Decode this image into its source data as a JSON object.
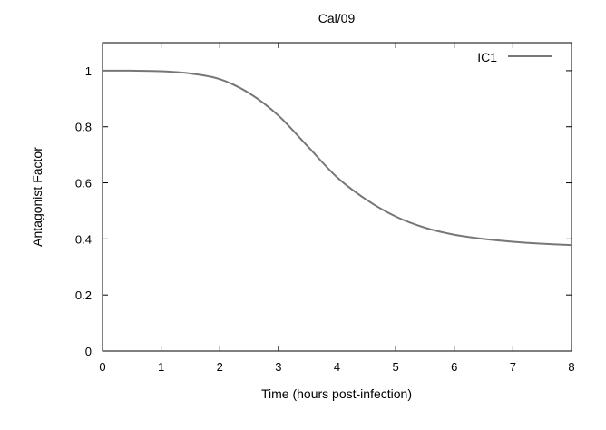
{
  "chart_data": {
    "type": "line",
    "title": "Cal/09",
    "xlabel": "Time (hours post-infection)",
    "ylabel": "Antagonist Factor",
    "xlim": [
      0,
      8
    ],
    "ylim": [
      0,
      1.1
    ],
    "xticks": [
      "0",
      "1",
      "2",
      "3",
      "4",
      "5",
      "6",
      "7",
      "8"
    ],
    "yticks": [
      "0",
      "0.2",
      "0.4",
      "0.6",
      "0.8",
      "1"
    ],
    "grid": false,
    "legend": "top-right",
    "series": [
      {
        "name": "IC1",
        "color": "#777777",
        "x": [
          0,
          0.5,
          1,
          1.5,
          2,
          2.5,
          3,
          3.5,
          4,
          4.5,
          5,
          5.5,
          6,
          6.5,
          7,
          7.5,
          8
        ],
        "y": [
          1.0,
          1.0,
          0.998,
          0.99,
          0.97,
          0.92,
          0.84,
          0.73,
          0.62,
          0.54,
          0.48,
          0.44,
          0.415,
          0.4,
          0.39,
          0.383,
          0.378
        ]
      }
    ]
  }
}
